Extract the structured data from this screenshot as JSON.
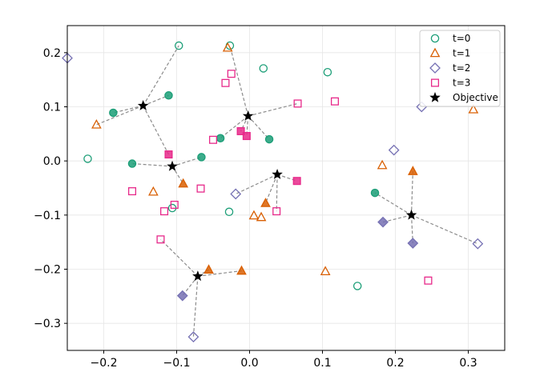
{
  "chart_data": {
    "type": "scatter",
    "title": "",
    "xlabel": "",
    "ylabel": "",
    "xlim": [
      -0.25,
      0.35
    ],
    "ylim": [
      -0.35,
      0.25
    ],
    "x_ticks": [
      -0.2,
      -0.1,
      0.0,
      0.1,
      0.2,
      0.3
    ],
    "y_ticks": [
      -0.3,
      -0.2,
      -0.1,
      0.0,
      0.1,
      0.2
    ],
    "x_tick_labels": [
      "−0.2",
      "−0.1",
      "0.0",
      "0.1",
      "0.2",
      "0.3"
    ],
    "y_tick_labels": [
      "−0.3",
      "−0.2",
      "−0.1",
      "0.0",
      "0.1",
      "0.2"
    ],
    "grid": true,
    "legend_position": "top-right",
    "series": [
      {
        "name": "t=0",
        "marker": "circle",
        "color": "#1b9e77",
        "hollow": [
          [
            -0.097,
            0.213
          ],
          [
            -0.027,
            0.213
          ],
          [
            0.019,
            0.171
          ],
          [
            0.107,
            0.164
          ],
          [
            -0.222,
            0.004
          ],
          [
            -0.028,
            -0.094
          ],
          [
            -0.106,
            -0.087
          ],
          [
            0.148,
            -0.231
          ]
        ],
        "filled": [
          [
            -0.111,
            0.121
          ],
          [
            -0.187,
            0.089
          ],
          [
            -0.161,
            -0.005
          ],
          [
            -0.066,
            0.007
          ],
          [
            -0.04,
            0.042
          ],
          [
            0.027,
            0.04
          ],
          [
            0.172,
            -0.059
          ]
        ]
      },
      {
        "name": "t=1",
        "marker": "triangle",
        "color": "#d95f02",
        "hollow": [
          [
            -0.03,
            0.209
          ],
          [
            -0.21,
            0.067
          ],
          [
            -0.132,
            -0.057
          ],
          [
            0.006,
            -0.101
          ],
          [
            0.016,
            -0.104
          ],
          [
            0.307,
            0.095
          ],
          [
            0.182,
            -0.008
          ],
          [
            0.104,
            -0.204
          ]
        ],
        "filled": [
          [
            -0.091,
            -0.042
          ],
          [
            -0.056,
            -0.201
          ],
          [
            -0.011,
            -0.203
          ],
          [
            0.022,
            -0.078
          ],
          [
            0.224,
            -0.019
          ]
        ]
      },
      {
        "name": "t=2",
        "marker": "diamond",
        "color": "#7570b3",
        "hollow": [
          [
            -0.25,
            0.19
          ],
          [
            0.236,
            0.1
          ],
          [
            0.198,
            0.02
          ],
          [
            -0.019,
            -0.061
          ],
          [
            0.313,
            -0.153
          ],
          [
            -0.077,
            -0.325
          ]
        ],
        "filled": [
          [
            0.183,
            -0.113
          ],
          [
            0.224,
            -0.152
          ],
          [
            -0.092,
            -0.249
          ]
        ]
      },
      {
        "name": "t=3",
        "marker": "square",
        "color": "#e7298a",
        "hollow": [
          [
            -0.033,
            0.144
          ],
          [
            -0.025,
            0.161
          ],
          [
            0.066,
            0.106
          ],
          [
            0.117,
            0.11
          ],
          [
            -0.05,
            0.039
          ],
          [
            -0.161,
            -0.056
          ],
          [
            -0.067,
            -0.051
          ],
          [
            -0.117,
            -0.093
          ],
          [
            -0.103,
            -0.081
          ],
          [
            0.037,
            -0.093
          ],
          [
            -0.122,
            -0.145
          ],
          [
            0.245,
            -0.221
          ]
        ],
        "filled": [
          [
            -0.111,
            0.012
          ],
          [
            -0.012,
            0.055
          ],
          [
            -0.004,
            0.046
          ],
          [
            0.065,
            -0.037
          ]
        ]
      }
    ],
    "objectives": {
      "name": "Objective",
      "marker": "star",
      "color": "#000000",
      "points": [
        [
          -0.146,
          0.102
        ],
        [
          -0.002,
          0.083
        ],
        [
          -0.106,
          -0.01
        ],
        [
          0.038,
          -0.025
        ],
        [
          0.222,
          -0.1
        ],
        [
          -0.071,
          -0.213
        ]
      ]
    },
    "connections": [
      {
        "objective": 0,
        "targets": [
          [
            -0.097,
            0.213
          ],
          [
            -0.111,
            0.121
          ],
          [
            -0.187,
            0.089
          ],
          [
            -0.21,
            0.067
          ],
          [
            -0.111,
            0.012
          ]
        ]
      },
      {
        "objective": 1,
        "targets": [
          [
            -0.027,
            0.213
          ],
          [
            0.066,
            0.106
          ],
          [
            -0.04,
            0.042
          ],
          [
            0.027,
            0.04
          ],
          [
            -0.012,
            0.055
          ],
          [
            -0.004,
            0.046
          ]
        ]
      },
      {
        "objective": 2,
        "targets": [
          [
            -0.161,
            -0.005
          ],
          [
            -0.066,
            0.007
          ],
          [
            -0.091,
            -0.042
          ]
        ]
      },
      {
        "objective": 3,
        "targets": [
          [
            -0.019,
            -0.061
          ],
          [
            0.022,
            -0.078
          ],
          [
            0.037,
            -0.093
          ],
          [
            0.065,
            -0.037
          ]
        ]
      },
      {
        "objective": 4,
        "targets": [
          [
            0.172,
            -0.059
          ],
          [
            0.224,
            -0.019
          ],
          [
            0.183,
            -0.113
          ],
          [
            0.224,
            -0.152
          ],
          [
            0.313,
            -0.153
          ]
        ]
      },
      {
        "objective": 5,
        "targets": [
          [
            -0.122,
            -0.145
          ],
          [
            -0.056,
            -0.201
          ],
          [
            -0.011,
            -0.203
          ],
          [
            -0.092,
            -0.249
          ],
          [
            -0.077,
            -0.325
          ]
        ]
      }
    ]
  }
}
